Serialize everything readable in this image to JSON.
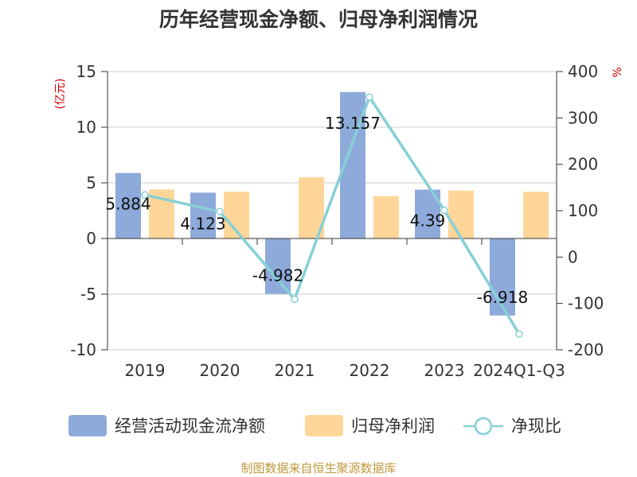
{
  "chart_data": {
    "type": "bar",
    "title": "历年经营现金净额、归母净利润情况",
    "categories": [
      "2019",
      "2020",
      "2021",
      "2022",
      "2023",
      "2024Q1-Q3"
    ],
    "series": [
      {
        "name": "经营活动现金流净额",
        "type": "bar",
        "axis": "left",
        "color": "#8eaadb",
        "values": [
          5.884,
          4.123,
          -4.982,
          13.157,
          4.39,
          -6.918
        ],
        "labels": [
          "5.884",
          "4.123",
          "-4.982",
          "13.157",
          "4.39",
          "-6.918"
        ]
      },
      {
        "name": "归母净利润",
        "type": "bar",
        "axis": "left",
        "color": "#ffd699",
        "values": [
          4.4,
          4.2,
          5.5,
          3.8,
          4.3,
          4.2
        ]
      },
      {
        "name": "净现比",
        "type": "line",
        "axis": "right",
        "color": "#86d0d6",
        "values": [
          134,
          98,
          -91,
          345,
          101,
          -166
        ]
      }
    ],
    "left_axis": {
      "unit": "(亿元)",
      "min": -10,
      "max": 15,
      "ticks": [
        15,
        10,
        5,
        0,
        -5,
        -10
      ]
    },
    "right_axis": {
      "unit": "%",
      "min": -200,
      "max": 400,
      "ticks": [
        400,
        300,
        200,
        100,
        0,
        -100,
        -200
      ]
    },
    "grid": true,
    "legend_position": "bottom"
  },
  "source": "制图数据来自恒生聚源数据库"
}
